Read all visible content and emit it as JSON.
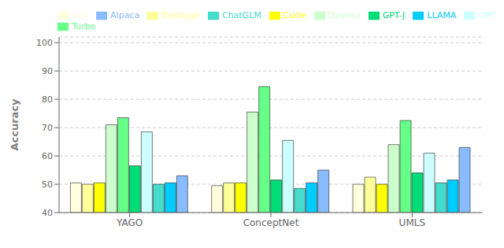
{
  "chart_data": {
    "type": "bar",
    "categories": [
      "YAGO",
      "ConceptNet",
      "UMLS"
    ],
    "series": [
      {
        "name": "Ada",
        "color": "#ffffdd",
        "values": [
          50.5,
          49.5,
          50.0
        ]
      },
      {
        "name": "Babbage",
        "color": "#ffff99",
        "values": [
          50.0,
          50.5,
          52.5
        ]
      },
      {
        "name": "Curie",
        "color": "#ffff00",
        "values": [
          50.5,
          50.5,
          50.0
        ]
      },
      {
        "name": "Davinci",
        "color": "#ccffcc",
        "values": [
          71.0,
          75.5,
          64.0
        ]
      },
      {
        "name": "Turbo",
        "color": "#66ff88",
        "values": [
          73.5,
          84.5,
          72.5
        ]
      },
      {
        "name": "GPT-J",
        "color": "#00dd77",
        "values": [
          56.5,
          51.5,
          54.0
        ]
      },
      {
        "name": "OPT",
        "color": "#ccffff",
        "values": [
          68.5,
          65.5,
          61.0
        ]
      },
      {
        "name": "ChatGLM",
        "color": "#44ddcc",
        "values": [
          50.0,
          48.5,
          50.5
        ]
      },
      {
        "name": "LLAMA",
        "color": "#00ccff",
        "values": [
          50.5,
          50.5,
          51.5
        ]
      },
      {
        "name": "Alpaca",
        "color": "#88bbff",
        "values": [
          53.0,
          55.0,
          63.0
        ]
      }
    ],
    "ylabel": "Accuracy",
    "ylim": [
      40,
      102
    ],
    "yticks": [
      40,
      50,
      60,
      70,
      80,
      90,
      100
    ],
    "grid": true,
    "legend": "upper left"
  }
}
